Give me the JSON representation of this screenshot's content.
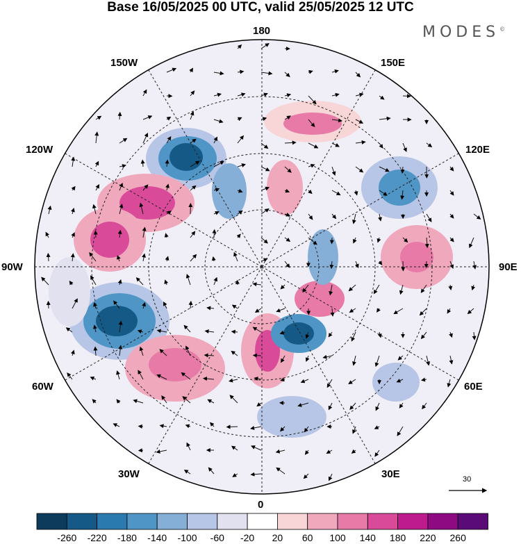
{
  "title": "Base 16/05/2025 00 UTC, valid 25/05/2025 12 UTC",
  "brand": "MODES",
  "brand_mark": "©",
  "longitudes": {
    "top": "180",
    "bottom": "0",
    "left": "90W",
    "right": "90E",
    "ul1": "150W",
    "ul2": "120W",
    "ur1": "150E",
    "ur2": "120E",
    "ll1": "60W",
    "ll2": "30W",
    "lr1": "60E",
    "lr2": "30E"
  },
  "reference_vector": "30",
  "colorbar": {
    "labels": [
      "-260",
      "-220",
      "-180",
      "-140",
      "-100",
      "-60",
      "-20",
      "20",
      "60",
      "100",
      "140",
      "180",
      "220",
      "260"
    ],
    "colors": [
      "#0d3b5c",
      "#155a86",
      "#2a7ab0",
      "#4f95c6",
      "#86afd8",
      "#b7c6e6",
      "#e1e1f0",
      "#ffffff",
      "#f8d6d8",
      "#f0a8bd",
      "#e77aa6",
      "#d94a99",
      "#be1c8e",
      "#8d0a83",
      "#5a0b78"
    ]
  }
}
